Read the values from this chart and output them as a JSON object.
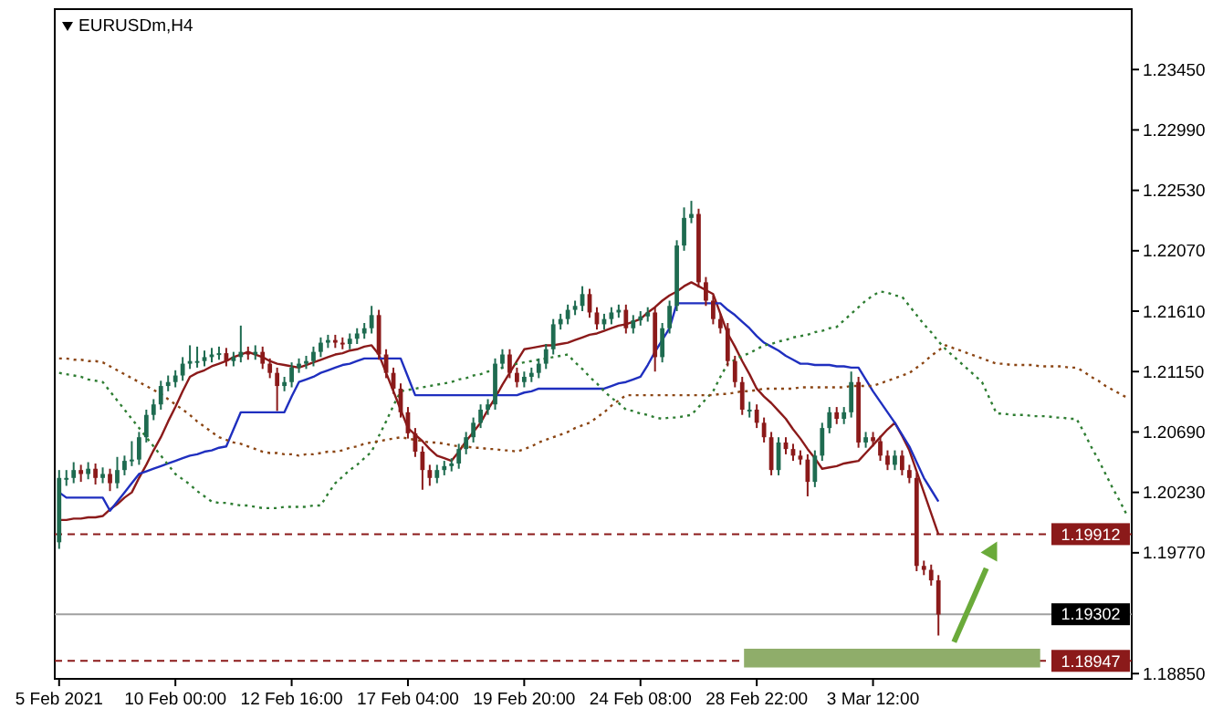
{
  "chart_data": {
    "type": "candlestick",
    "title": "EURUSDm,H4",
    "categories": [
      "5 Feb 2021",
      null,
      null,
      null,
      null,
      null,
      null,
      null,
      null,
      null,
      null,
      null,
      null,
      null,
      null,
      null,
      "10 Feb 00:00",
      null,
      null,
      null,
      null,
      null,
      null,
      null,
      null,
      null,
      null,
      null,
      null,
      null,
      null,
      null,
      "12 Feb 16:00",
      null,
      null,
      null,
      null,
      null,
      null,
      null,
      null,
      null,
      null,
      null,
      null,
      null,
      null,
      null,
      "17 Feb 04:00",
      null,
      null,
      null,
      null,
      null,
      null,
      null,
      null,
      null,
      null,
      null,
      null,
      null,
      null,
      null,
      "19 Feb 20:00",
      null,
      null,
      null,
      null,
      null,
      null,
      null,
      null,
      null,
      null,
      null,
      null,
      null,
      null,
      null,
      "24 Feb 08:00",
      null,
      null,
      null,
      null,
      null,
      null,
      null,
      null,
      null,
      null,
      null,
      null,
      null,
      null,
      null,
      "28 Feb 22:00",
      null,
      null,
      null,
      null,
      null,
      null,
      null,
      null,
      null,
      null,
      null,
      null,
      null,
      null,
      null,
      "3 Mar 12:00",
      null,
      null,
      null,
      null,
      null,
      null,
      null,
      null,
      null,
      null,
      null,
      null,
      null,
      null,
      null,
      null,
      null,
      null,
      null,
      null,
      null,
      null,
      null,
      null,
      null,
      null,
      null,
      null,
      null,
      null,
      null,
      null,
      null,
      null,
      null
    ],
    "ylim": [
      1.1881,
      1.2391
    ],
    "yticks": [
      {
        "value": 1.2345,
        "label": "1.23450"
      },
      {
        "value": 1.2299,
        "label": "1.22990"
      },
      {
        "value": 1.2253,
        "label": "1.22530"
      },
      {
        "value": 1.2207,
        "label": "1.22070"
      },
      {
        "value": 1.2161,
        "label": "1.21610"
      },
      {
        "value": 1.2115,
        "label": "1.21150"
      },
      {
        "value": 1.2069,
        "label": "1.20690"
      },
      {
        "value": 1.2023,
        "label": "1.20230"
      },
      {
        "value": 1.1977,
        "label": "1.19770"
      },
      {
        "value": 1.1885,
        "label": "1.18850"
      }
    ],
    "grid": false,
    "colors": [
      "#1e6b50",
      "#8b1a1a"
    ],
    "ref_lines": [
      {
        "axis": "y",
        "value": 1.19912,
        "label": "1.19912",
        "color": "#8b1a1a",
        "line_style": "dashed"
      },
      {
        "axis": "y",
        "value": 1.19302,
        "label": "1.19302",
        "color": "#a0a0a0",
        "line_style": "solid"
      },
      {
        "axis": "y",
        "value": 1.18947,
        "label": "1.18947",
        "color": "#8b1a1a",
        "line_style": "dashed"
      }
    ],
    "series": [
      {
        "ohlc": [
          [
            1.1985,
            1.204,
            1.198,
            1.2034
          ],
          [
            1.2034,
            1.204,
            1.2028,
            1.2034
          ],
          [
            1.2034,
            1.2046,
            1.203,
            1.204
          ],
          [
            1.204,
            1.2044,
            1.2031,
            1.2037
          ],
          [
            1.2037,
            1.2046,
            1.2033,
            1.2041
          ],
          [
            1.2041,
            1.2045,
            1.2029,
            1.2034
          ],
          [
            1.2034,
            1.2042,
            1.203,
            1.2037
          ],
          [
            1.2037,
            1.2041,
            1.2024,
            1.203
          ],
          [
            1.203,
            1.205,
            1.2026,
            1.204
          ],
          [
            1.204,
            1.2051,
            1.2036,
            1.2047
          ],
          [
            1.2047,
            1.2062,
            1.2043,
            1.2048
          ],
          [
            1.2048,
            1.2069,
            1.2044,
            1.2065
          ],
          [
            1.2065,
            1.2086,
            1.2061,
            1.2082
          ],
          [
            1.2082,
            1.2094,
            1.2078,
            1.209
          ],
          [
            1.209,
            1.2108,
            1.2086,
            1.2104
          ],
          [
            1.2104,
            1.2112,
            1.21,
            1.2107
          ],
          [
            1.2107,
            1.2116,
            1.2103,
            1.2112
          ],
          [
            1.2112,
            1.2126,
            1.2108,
            1.2121
          ],
          [
            1.2121,
            1.2135,
            1.2117,
            1.2123
          ],
          [
            1.2123,
            1.2134,
            1.2118,
            1.2123
          ],
          [
            1.2123,
            1.2131,
            1.2119,
            1.2126
          ],
          [
            1.2126,
            1.2133,
            1.2122,
            1.2128
          ],
          [
            1.2128,
            1.2134,
            1.2124,
            1.2129
          ],
          [
            1.2129,
            1.2133,
            1.2119,
            1.2123
          ],
          [
            1.2123,
            1.213,
            1.2119,
            1.2126
          ],
          [
            1.2126,
            1.215,
            1.2122,
            1.213
          ],
          [
            1.213,
            1.2134,
            1.2124,
            1.2128
          ],
          [
            1.2128,
            1.2135,
            1.2124,
            1.213
          ],
          [
            1.213,
            1.2134,
            1.2117,
            1.2121
          ],
          [
            1.2121,
            1.2125,
            1.211,
            1.2114
          ],
          [
            1.2114,
            1.2118,
            1.2085,
            1.2104
          ],
          [
            1.2104,
            1.2111,
            1.21,
            1.2107
          ],
          [
            1.2107,
            1.2122,
            1.2103,
            1.2118
          ],
          [
            1.2118,
            1.2125,
            1.2114,
            1.2121
          ],
          [
            1.2121,
            1.2127,
            1.2117,
            1.2123
          ],
          [
            1.2123,
            1.2134,
            1.2119,
            1.213
          ],
          [
            1.213,
            1.2141,
            1.2126,
            1.2137
          ],
          [
            1.2137,
            1.2143,
            1.2133,
            1.2139
          ],
          [
            1.2139,
            1.2143,
            1.2133,
            1.2137
          ],
          [
            1.2137,
            1.2141,
            1.2132,
            1.2136
          ],
          [
            1.2136,
            1.2144,
            1.2132,
            1.214
          ],
          [
            1.214,
            1.2148,
            1.2136,
            1.2144
          ],
          [
            1.2144,
            1.2152,
            1.214,
            1.2148
          ],
          [
            1.2148,
            1.2165,
            1.2144,
            1.2158
          ],
          [
            1.2158,
            1.2162,
            1.2124,
            1.2128
          ],
          [
            1.2128,
            1.2132,
            1.211,
            1.2114
          ],
          [
            1.2114,
            1.2118,
            1.2098,
            1.2102
          ],
          [
            1.2102,
            1.2106,
            1.208,
            1.2084
          ],
          [
            1.2084,
            1.2088,
            1.2064,
            1.2068
          ],
          [
            1.2068,
            1.2072,
            1.205,
            1.2054
          ],
          [
            1.2054,
            1.2058,
            1.2025,
            1.204
          ],
          [
            1.204,
            1.2044,
            1.2028,
            1.2034
          ],
          [
            1.2034,
            1.2044,
            1.203,
            1.204
          ],
          [
            1.204,
            1.2047,
            1.2036,
            1.2043
          ],
          [
            1.2043,
            1.2049,
            1.2039,
            1.2045
          ],
          [
            1.2045,
            1.206,
            1.2041,
            1.2056
          ],
          [
            1.2056,
            1.2069,
            1.2052,
            1.2065
          ],
          [
            1.2065,
            1.208,
            1.2061,
            1.2076
          ],
          [
            1.2076,
            1.209,
            1.2072,
            1.2086
          ],
          [
            1.2086,
            1.2094,
            1.2082,
            1.209
          ],
          [
            1.209,
            1.2125,
            1.2086,
            1.2121
          ],
          [
            1.2121,
            1.2132,
            1.2117,
            1.2128
          ],
          [
            1.2128,
            1.2132,
            1.211,
            1.2114
          ],
          [
            1.2114,
            1.2118,
            1.2103,
            1.2107
          ],
          [
            1.2107,
            1.2115,
            1.2103,
            1.2111
          ],
          [
            1.2111,
            1.2118,
            1.2107,
            1.2114
          ],
          [
            1.2114,
            1.2125,
            1.211,
            1.2121
          ],
          [
            1.2121,
            1.2136,
            1.2117,
            1.2132
          ],
          [
            1.2132,
            1.2155,
            1.2128,
            1.2151
          ],
          [
            1.2151,
            1.2159,
            1.2147,
            1.2155
          ],
          [
            1.2155,
            1.2166,
            1.2151,
            1.2162
          ],
          [
            1.2162,
            1.2169,
            1.2158,
            1.2165
          ],
          [
            1.2165,
            1.218,
            1.2161,
            1.2174
          ],
          [
            1.2174,
            1.2178,
            1.2156,
            1.216
          ],
          [
            1.216,
            1.2164,
            1.2147,
            1.2151
          ],
          [
            1.2151,
            1.2159,
            1.2147,
            1.2155
          ],
          [
            1.2155,
            1.2164,
            1.2151,
            1.216
          ],
          [
            1.216,
            1.2166,
            1.2156,
            1.2162
          ],
          [
            1.2162,
            1.2166,
            1.2144,
            1.2148
          ],
          [
            1.2148,
            1.2158,
            1.2144,
            1.2154
          ],
          [
            1.2154,
            1.2161,
            1.215,
            1.2157
          ],
          [
            1.2157,
            1.2164,
            1.2153,
            1.216
          ],
          [
            1.216,
            1.2164,
            1.2115,
            1.2126
          ],
          [
            1.2126,
            1.2152,
            1.2122,
            1.2148
          ],
          [
            1.2148,
            1.2169,
            1.2144,
            1.2165
          ],
          [
            1.2165,
            1.2215,
            1.2161,
            1.2211
          ],
          [
            1.2211,
            1.224,
            1.2207,
            1.2232
          ],
          [
            1.2232,
            1.2245,
            1.2228,
            1.2235
          ],
          [
            1.2235,
            1.2239,
            1.2179,
            1.2183
          ],
          [
            1.2183,
            1.2187,
            1.2165,
            1.2169
          ],
          [
            1.2169,
            1.2173,
            1.2151,
            1.2155
          ],
          [
            1.2155,
            1.2159,
            1.2144,
            1.2148
          ],
          [
            1.2148,
            1.2152,
            1.2119,
            1.2123
          ],
          [
            1.2123,
            1.2127,
            1.2103,
            1.2107
          ],
          [
            1.2107,
            1.2111,
            1.2082,
            1.2086
          ],
          [
            1.2086,
            1.2092,
            1.208,
            1.2086
          ],
          [
            1.2086,
            1.209,
            1.2072,
            1.2076
          ],
          [
            1.2076,
            1.208,
            1.2061,
            1.2065
          ],
          [
            1.2065,
            1.2069,
            1.2036,
            1.204
          ],
          [
            1.204,
            1.2065,
            1.2036,
            1.2061
          ],
          [
            1.2061,
            1.2065,
            1.2052,
            1.2056
          ],
          [
            1.2056,
            1.206,
            1.2047,
            1.2051
          ],
          [
            1.2051,
            1.2055,
            1.2044,
            1.2048
          ],
          [
            1.2048,
            1.2052,
            1.202,
            1.2031
          ],
          [
            1.2031,
            1.2055,
            1.2027,
            1.2051
          ],
          [
            1.2051,
            1.2076,
            1.2047,
            1.2072
          ],
          [
            1.2072,
            1.2088,
            1.2068,
            1.2084
          ],
          [
            1.2084,
            1.2088,
            1.2075,
            1.2079
          ],
          [
            1.2079,
            1.2088,
            1.2075,
            1.2084
          ],
          [
            1.2084,
            1.2115,
            1.208,
            1.2107
          ],
          [
            1.2107,
            1.2111,
            1.2057,
            1.2061
          ],
          [
            1.2061,
            1.2069,
            1.2057,
            1.2065
          ],
          [
            1.2065,
            1.2069,
            1.2058,
            1.2062
          ],
          [
            1.2062,
            1.2066,
            1.2047,
            1.2051
          ],
          [
            1.2051,
            1.2055,
            1.204,
            1.2044
          ],
          [
            1.2044,
            1.2055,
            1.204,
            1.2051
          ],
          [
            1.2051,
            1.2055,
            1.2036,
            1.204
          ],
          [
            1.204,
            1.2044,
            1.203,
            1.2034
          ],
          [
            1.2034,
            1.2038,
            1.1963,
            1.1967
          ],
          [
            1.1967,
            1.1971,
            1.196,
            1.1964
          ],
          [
            1.1964,
            1.1968,
            1.1952,
            1.1956
          ],
          [
            1.1956,
            1.196,
            1.1914,
            1.193
          ],
          null,
          null,
          null,
          null,
          null,
          null,
          null,
          null,
          null,
          null,
          null,
          null,
          null,
          null,
          null,
          null,
          null,
          null,
          null,
          null,
          null,
          null,
          null,
          null,
          null,
          null
        ]
      },
      {
        "type": "line",
        "color": "#8b1a1a",
        "line_style": "solid",
        "values": [
          1.2002,
          1.2002,
          1.2003,
          1.2003,
          1.2004,
          1.2004,
          1.2005,
          1.201,
          1.2014,
          1.2019,
          1.2023,
          1.2034,
          1.2044,
          1.2055,
          1.2065,
          1.2077,
          1.2088,
          1.21,
          1.2111,
          1.2114,
          1.2116,
          1.2119,
          1.2121,
          1.2123,
          1.2126,
          1.2128,
          1.213,
          1.2128,
          1.2126,
          1.2123,
          1.2121,
          1.212,
          1.2119,
          1.2118,
          1.212,
          1.2122,
          1.2124,
          1.2126,
          1.2128,
          1.2129,
          1.2131,
          1.2132,
          1.2134,
          1.2135,
          1.2128,
          1.2114,
          1.21,
          1.2086,
          1.2072,
          1.2067,
          1.2062,
          1.2056,
          1.2051,
          1.2049,
          1.2047,
          1.2054,
          1.2062,
          1.2069,
          1.2076,
          1.2086,
          1.2095,
          1.2105,
          1.2114,
          1.2123,
          1.2132,
          1.2133,
          1.2134,
          1.2135,
          1.2135,
          1.2136,
          1.2137,
          1.2139,
          1.2141,
          1.2143,
          1.2144,
          1.2146,
          1.2148,
          1.215,
          1.2151,
          1.2153,
          1.2155,
          1.216,
          1.2164,
          1.2169,
          1.2173,
          1.2176,
          1.218,
          1.2183,
          1.218,
          1.2177,
          1.2174,
          1.2159,
          1.2144,
          1.2134,
          1.2123,
          1.2113,
          1.2102,
          1.2096,
          1.2091,
          1.2085,
          1.2079,
          1.2071,
          1.2064,
          1.2056,
          1.2049,
          1.2041,
          1.2042,
          1.2043,
          1.2045,
          1.2046,
          1.2047,
          1.2053,
          1.2059,
          1.2065,
          1.2071,
          1.2076,
          1.2066,
          1.2055,
          1.2039,
          1.2023,
          1.2007,
          1.1991,
          null,
          null,
          null,
          null,
          null,
          null,
          null,
          null,
          null,
          null,
          null,
          null,
          null,
          null,
          null,
          null,
          null,
          null,
          null,
          null,
          null,
          null,
          null,
          null,
          null,
          null
        ]
      },
      {
        "type": "line",
        "color": "#1f2fbf",
        "line_style": "solid",
        "values": [
          1.2023,
          1.2019,
          1.2019,
          1.2019,
          1.2019,
          1.2019,
          1.2019,
          1.2009,
          1.2016,
          1.2023,
          1.203,
          1.2037,
          1.2039,
          1.2041,
          1.2043,
          1.2045,
          1.2047,
          1.2049,
          1.2051,
          1.2052,
          1.2054,
          1.2055,
          1.2057,
          1.2058,
          1.2071,
          1.2084,
          1.2084,
          1.2084,
          1.2084,
          1.2084,
          1.2084,
          1.2084,
          1.2096,
          1.2107,
          1.2109,
          1.2111,
          1.2114,
          1.2116,
          1.2118,
          1.212,
          1.2121,
          1.2123,
          1.2125,
          1.2125,
          1.2125,
          1.2125,
          1.2125,
          1.2125,
          1.2111,
          1.2097,
          1.2097,
          1.2097,
          1.2097,
          1.2097,
          1.2097,
          1.2097,
          1.2097,
          1.2097,
          1.2097,
          1.2097,
          1.2097,
          1.2097,
          1.2097,
          1.2097,
          1.2099,
          1.21,
          1.2102,
          1.2102,
          1.2102,
          1.2102,
          1.2102,
          1.2102,
          1.2102,
          1.2102,
          1.2102,
          1.2102,
          1.2104,
          1.2106,
          1.2107,
          1.2109,
          1.2111,
          1.212,
          1.213,
          1.2139,
          1.2148,
          1.2167,
          1.2167,
          1.2167,
          1.2167,
          1.2167,
          1.2167,
          1.2167,
          1.2162,
          1.2158,
          1.2153,
          1.2148,
          1.2142,
          1.2137,
          1.2134,
          1.2131,
          1.2127,
          1.2124,
          1.2121,
          1.2121,
          1.212,
          1.212,
          1.212,
          1.2119,
          1.2119,
          1.2118,
          1.2118,
          1.2109,
          1.21,
          1.2092,
          1.2084,
          1.2076,
          1.2067,
          1.2058,
          1.2046,
          1.2034,
          1.2025,
          1.2016,
          null,
          null,
          null,
          null,
          null,
          null,
          null,
          null,
          null,
          null,
          null,
          null,
          null,
          null,
          null,
          null,
          null,
          null,
          null,
          null,
          null,
          null,
          null,
          null,
          null,
          null
        ]
      },
      {
        "type": "line",
        "color": "#2e7d32",
        "line_style": "dotted",
        "values": [
          1.2114,
          1.2113,
          1.2112,
          1.2111,
          1.2109,
          1.2108,
          1.2107,
          1.21,
          1.2093,
          1.2086,
          1.2079,
          1.2072,
          1.2065,
          1.2058,
          1.2051,
          1.2044,
          1.2037,
          1.2033,
          1.2029,
          1.2024,
          1.202,
          1.2016,
          1.2015,
          1.2015,
          1.2014,
          1.2013,
          1.2013,
          1.2012,
          1.2011,
          1.2011,
          1.2011,
          1.2012,
          1.2012,
          1.2012,
          1.2012,
          1.2013,
          1.2013,
          1.2022,
          1.203,
          1.2035,
          1.204,
          1.2044,
          1.2049,
          1.2054,
          1.2066,
          1.2077,
          1.2089,
          1.21,
          1.2101,
          1.2102,
          1.2103,
          1.2104,
          1.2105,
          1.2106,
          1.2107,
          1.2109,
          1.211,
          1.2112,
          1.2113,
          1.2115,
          1.2116,
          1.2118,
          1.2119,
          1.2121,
          1.2122,
          1.2123,
          1.2124,
          1.2125,
          1.2126,
          1.2127,
          1.2128,
          1.2122,
          1.2117,
          1.2111,
          1.2106,
          1.21,
          1.2095,
          1.2091,
          1.2086,
          1.2085,
          1.2083,
          1.2082,
          1.208,
          1.2079,
          1.208,
          1.208,
          1.2081,
          1.2082,
          1.2088,
          1.2094,
          1.21,
          1.2111,
          1.2121,
          1.2124,
          1.2127,
          1.2129,
          1.2132,
          1.2135,
          1.2136,
          1.2138,
          1.2139,
          1.2141,
          1.2142,
          1.2143,
          1.2145,
          1.2146,
          1.2148,
          1.2149,
          1.2154,
          1.2159,
          1.2164,
          1.2169,
          1.2173,
          1.2176,
          1.2175,
          1.2173,
          1.2172,
          1.2165,
          1.2158,
          1.2151,
          1.2145,
          1.2138,
          1.2132,
          1.2127,
          1.2122,
          1.2117,
          1.2112,
          1.2107,
          1.2095,
          1.2083,
          1.2083,
          1.2082,
          1.2082,
          1.2082,
          1.2081,
          1.2081,
          1.2081,
          1.208,
          1.208,
          1.2079,
          1.2079,
          1.2069,
          1.2058,
          1.2048,
          1.2037,
          1.2026,
          1.2016,
          1.2005
        ]
      },
      {
        "type": "line",
        "color": "#8b4513",
        "line_style": "dotted",
        "values": [
          1.2125,
          1.2125,
          1.2124,
          1.2124,
          1.2123,
          1.2123,
          1.2122,
          1.2119,
          1.2116,
          1.2113,
          1.211,
          1.2107,
          1.2104,
          1.2101,
          1.2098,
          1.2094,
          1.209,
          1.2086,
          1.2082,
          1.2077,
          1.2073,
          1.2069,
          1.2065,
          1.2063,
          1.2061,
          1.206,
          1.2058,
          1.2056,
          1.2054,
          1.2053,
          1.2053,
          1.2052,
          1.2052,
          1.2051,
          1.2052,
          1.2052,
          1.2053,
          1.2054,
          1.2054,
          1.2055,
          1.2057,
          1.2058,
          1.206,
          1.2061,
          1.2062,
          1.2063,
          1.2064,
          1.2065,
          1.2064,
          1.2063,
          1.2062,
          1.2061,
          1.2061,
          1.206,
          1.2059,
          1.2058,
          1.2058,
          1.2057,
          1.2057,
          1.2056,
          1.2056,
          1.2055,
          1.2055,
          1.2054,
          1.2056,
          1.2058,
          1.2061,
          1.2063,
          1.2065,
          1.2067,
          1.2069,
          1.2072,
          1.2074,
          1.2076,
          1.208,
          1.2084,
          1.2089,
          1.2093,
          1.2097,
          1.2097,
          1.2097,
          1.2097,
          1.2097,
          1.2097,
          1.2097,
          1.2097,
          1.2097,
          1.2097,
          1.2097,
          1.2097,
          1.2097,
          1.2098,
          1.2098,
          1.2099,
          1.21,
          1.21,
          1.2101,
          1.2102,
          1.2102,
          1.2102,
          1.2102,
          1.2102,
          1.2103,
          1.2103,
          1.2103,
          1.2103,
          1.2103,
          1.2103,
          1.2103,
          1.2104,
          1.2104,
          1.2104,
          1.2104,
          1.2106,
          1.2108,
          1.211,
          1.2112,
          1.2114,
          1.2118,
          1.2122,
          1.2127,
          1.2131,
          1.2135,
          1.2133,
          1.2131,
          1.2129,
          1.2127,
          1.2125,
          1.2123,
          1.2121,
          1.2121,
          1.212,
          1.212,
          1.212,
          1.212,
          1.2119,
          1.2119,
          1.2119,
          1.2119,
          1.2118,
          1.2118,
          1.2115,
          1.2111,
          1.2108,
          1.2104,
          1.2101,
          1.2098,
          1.2095
        ]
      }
    ]
  }
}
